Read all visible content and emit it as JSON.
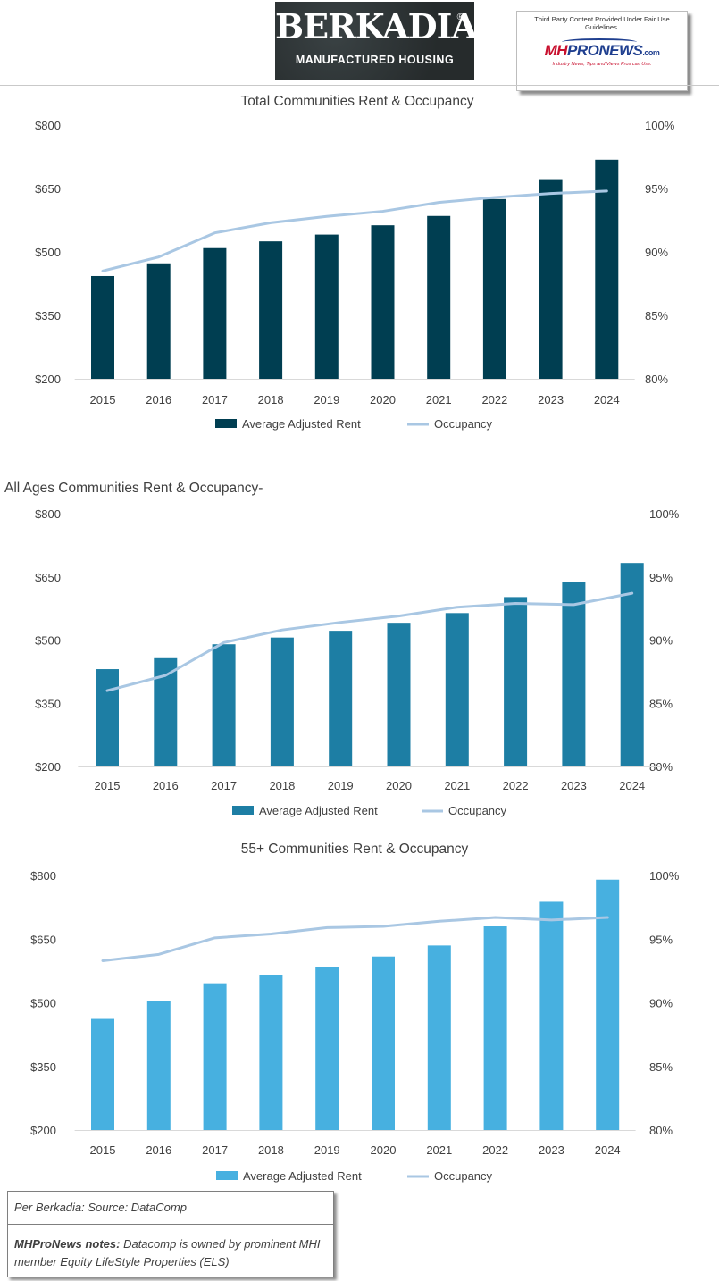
{
  "header": {
    "logo": {
      "brand": "BERKADIA",
      "registered": "®",
      "subtitle": "MANUFACTURED HOUSING"
    },
    "fair_use": {
      "notice": "Third Party Content Provided Under Fair Use Guidelines.",
      "logo_mh": "MH",
      "logo_pronews": "PRONEWS",
      "logo_com": ".com",
      "tagline": "Industry News, Tips and Views Pros can Use."
    }
  },
  "colors": {
    "total_bar": "#003e51",
    "all_ages_bar": "#1d7ea4",
    "senior_bar": "#47b0e0",
    "occupancy_line": "#a9c7e3"
  },
  "chart_data": [
    {
      "type": "bar+line",
      "title": "Total Communities Rent & Occupancy",
      "categories": [
        "2015",
        "2016",
        "2017",
        "2018",
        "2019",
        "2020",
        "2021",
        "2022",
        "2023",
        "2024"
      ],
      "series": [
        {
          "name": "Average  Adjusted  Rent",
          "axis": "left",
          "kind": "bar",
          "values": [
            443,
            473,
            509,
            525,
            541,
            563,
            585,
            625,
            672,
            718
          ]
        },
        {
          "name": "Occupancy",
          "axis": "right",
          "kind": "line",
          "values": [
            88.5,
            89.6,
            91.5,
            92.3,
            92.8,
            93.2,
            93.9,
            94.3,
            94.6,
            94.8
          ]
        }
      ],
      "y_left": {
        "min": 200,
        "max": 800,
        "ticks": [
          "$800",
          "$650",
          "$500",
          "$350",
          "$200"
        ]
      },
      "y_right": {
        "min": 80,
        "max": 100,
        "ticks": [
          "100%",
          "95%",
          "90%",
          "85%",
          "80%"
        ]
      },
      "legend": "bottom"
    },
    {
      "type": "bar+line",
      "title": "All Ages Communities Rent & Occupancy-",
      "categories": [
        "2015",
        "2016",
        "2017",
        "2018",
        "2019",
        "2020",
        "2021",
        "2022",
        "2023",
        "2024"
      ],
      "series": [
        {
          "name": "Average  Adjusted  Rent",
          "axis": "left",
          "kind": "bar",
          "values": [
            431,
            457,
            490,
            506,
            522,
            541,
            564,
            602,
            638,
            683
          ]
        },
        {
          "name": "Occupancy",
          "axis": "right",
          "kind": "line",
          "values": [
            86.0,
            87.2,
            89.8,
            90.8,
            91.4,
            91.9,
            92.6,
            92.9,
            92.8,
            93.7
          ]
        }
      ],
      "y_left": {
        "min": 200,
        "max": 800,
        "ticks": [
          "$800",
          "$650",
          "$500",
          "$350",
          "$200"
        ]
      },
      "y_right": {
        "min": 80,
        "max": 100,
        "ticks": [
          "100%",
          "95%",
          "90%",
          "85%",
          "80%"
        ]
      },
      "legend": "bottom"
    },
    {
      "type": "bar+line",
      "title": "55+ Communities Rent & Occupancy",
      "categories": [
        "2015",
        "2016",
        "2017",
        "2018",
        "2019",
        "2020",
        "2021",
        "2022",
        "2023",
        "2024"
      ],
      "series": [
        {
          "name": "Average  Adjusted  Rent",
          "axis": "left",
          "kind": "bar",
          "values": [
            462,
            505,
            546,
            566,
            585,
            609,
            635,
            680,
            738,
            790
          ]
        },
        {
          "name": "Occupancy",
          "axis": "right",
          "kind": "line",
          "values": [
            93.3,
            93.8,
            95.1,
            95.4,
            95.9,
            96.0,
            96.4,
            96.7,
            96.5,
            96.7
          ]
        }
      ],
      "y_left": {
        "min": 200,
        "max": 800,
        "ticks": [
          "$800",
          "$650",
          "$500",
          "$350",
          "$200"
        ]
      },
      "y_right": {
        "min": 80,
        "max": 100,
        "ticks": [
          "100%",
          "95%",
          "90%",
          "85%",
          "80%"
        ]
      },
      "legend": "bottom"
    }
  ],
  "footer": {
    "source": "Per Berkadia: Source: DataComp",
    "note_label": "MHProNews notes:",
    "note_text": " Datacomp is owned by prominent MHI member Equity LifeStyle Properties (ELS)"
  }
}
